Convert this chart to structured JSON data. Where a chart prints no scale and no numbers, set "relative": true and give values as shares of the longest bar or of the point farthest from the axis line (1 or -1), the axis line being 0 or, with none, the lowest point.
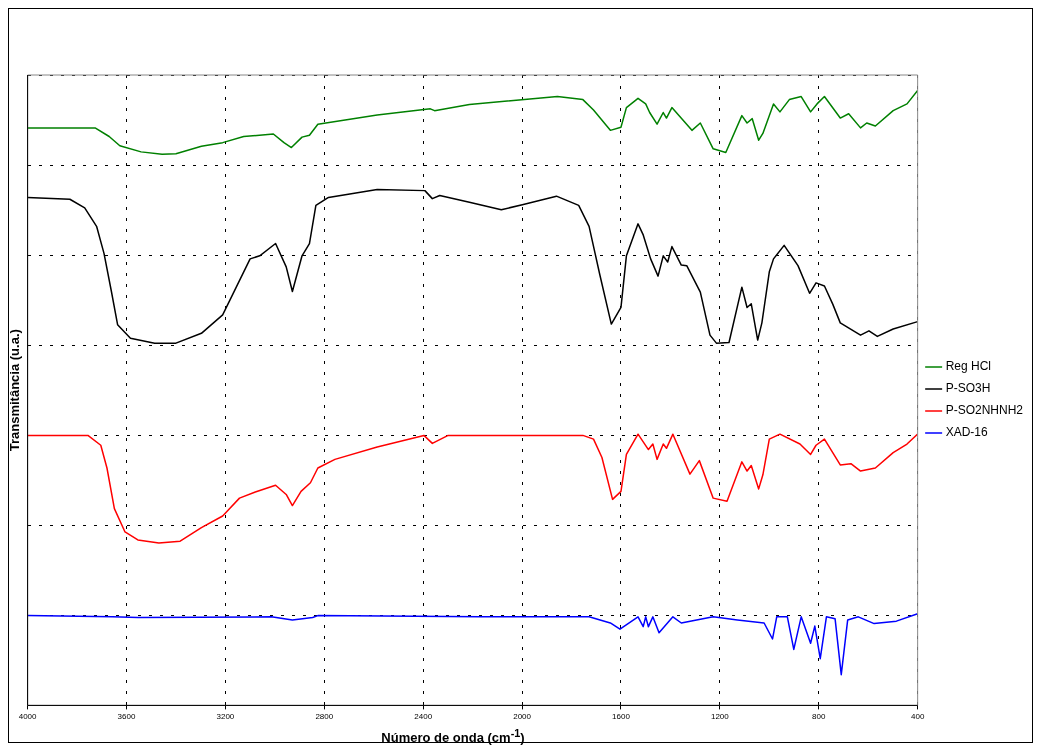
{
  "chart_data": {
    "type": "line",
    "xlabel": "Número de onda (cm$^{-1}$)",
    "ylabel": "Transmitância (u.a.)",
    "relative": true,
    "xlim": [
      4000,
      400
    ],
    "xticks": [
      4000,
      3600,
      3200,
      2800,
      2400,
      2000,
      1600,
      1200,
      800,
      400
    ],
    "grid": true,
    "legend": "right",
    "marker": "none",
    "line_style": "solid",
    "series": [
      {
        "name": "Reg HCl",
        "color": "#008000",
        "x": [
          4000,
          3727,
          3670,
          3627,
          3541,
          3456,
          3400,
          3297,
          3211,
          3126,
          3006,
          2963,
          2933,
          2890,
          2860,
          2826,
          2586,
          2371,
          2354,
          2213,
          1857,
          1754,
          1711,
          1643,
          1600,
          1578,
          1531,
          1500,
          1484,
          1454,
          1429,
          1416,
          1394,
          1313,
          1279,
          1227,
          1176,
          1111,
          1090,
          1069,
          1043,
          1026,
          983,
          957,
          919,
          871,
          833,
          807,
          777,
          713,
          679,
          631,
          606,
          571,
          499,
          443,
          400
        ],
        "values": [
          0.939,
          0.939,
          0.925,
          0.91,
          0.9,
          0.896,
          0.897,
          0.909,
          0.915,
          0.925,
          0.929,
          0.915,
          0.907,
          0.924,
          0.927,
          0.945,
          0.96,
          0.97,
          0.967,
          0.977,
          0.99,
          0.985,
          0.968,
          0.935,
          0.94,
          0.972,
          0.987,
          0.978,
          0.964,
          0.945,
          0.964,
          0.955,
          0.972,
          0.935,
          0.947,
          0.905,
          0.899,
          0.959,
          0.947,
          0.954,
          0.919,
          0.93,
          0.978,
          0.965,
          0.985,
          0.99,
          0.965,
          0.978,
          0.99,
          0.955,
          0.962,
          0.939,
          0.947,
          0.942,
          0.967,
          0.978,
          1.0
        ]
      },
      {
        "name": "P-SO3H",
        "color": "#000000",
        "x": [
          4000,
          3829,
          3769,
          3721,
          3691,
          3661,
          3636,
          3584,
          3486,
          3400,
          3297,
          3211,
          3156,
          3100,
          3061,
          2997,
          2954,
          2929,
          2890,
          2860,
          2834,
          2783,
          2586,
          2393,
          2363,
          2333,
          2213,
          2084,
          1999,
          1861,
          1771,
          1729,
          1686,
          1639,
          1600,
          1578,
          1531,
          1510,
          1480,
          1450,
          1429,
          1411,
          1394,
          1356,
          1334,
          1279,
          1240,
          1214,
          1163,
          1111,
          1090,
          1073,
          1047,
          1030,
          1000,
          983,
          940,
          884,
          837,
          811,
          777,
          743,
          713,
          631,
          597,
          563,
          499,
          400
        ],
        "values": [
          0.826,
          0.823,
          0.809,
          0.779,
          0.735,
          0.673,
          0.619,
          0.597,
          0.589,
          0.589,
          0.605,
          0.635,
          0.68,
          0.726,
          0.731,
          0.751,
          0.713,
          0.673,
          0.731,
          0.751,
          0.813,
          0.826,
          0.839,
          0.837,
          0.824,
          0.829,
          0.818,
          0.806,
          0.814,
          0.828,
          0.813,
          0.779,
          0.701,
          0.62,
          0.647,
          0.731,
          0.783,
          0.765,
          0.726,
          0.698,
          0.731,
          0.721,
          0.746,
          0.716,
          0.715,
          0.672,
          0.602,
          0.589,
          0.59,
          0.68,
          0.647,
          0.653,
          0.594,
          0.622,
          0.705,
          0.726,
          0.748,
          0.715,
          0.67,
          0.687,
          0.682,
          0.652,
          0.622,
          0.602,
          0.609,
          0.6,
          0.612,
          0.624
        ]
      },
      {
        "name": "P-SO2NHNH2",
        "color": "#ff0000",
        "x": [
          4000,
          3756,
          3704,
          3679,
          3649,
          3606,
          3554,
          3469,
          3383,
          3297,
          3211,
          3143,
          3079,
          2997,
          2954,
          2929,
          2894,
          2856,
          2826,
          2757,
          2586,
          2397,
          2363,
          2299,
          1754,
          1711,
          1677,
          1634,
          1600,
          1578,
          1531,
          1489,
          1471,
          1454,
          1429,
          1416,
          1390,
          1321,
          1283,
          1227,
          1171,
          1111,
          1090,
          1073,
          1043,
          1026,
          1000,
          957,
          876,
          833,
          811,
          777,
          713,
          670,
          631,
          571,
          499,
          443,
          400
        ],
        "values": [
          0.439,
          0.439,
          0.423,
          0.386,
          0.32,
          0.282,
          0.269,
          0.264,
          0.267,
          0.289,
          0.308,
          0.337,
          0.347,
          0.358,
          0.343,
          0.325,
          0.348,
          0.362,
          0.386,
          0.4,
          0.42,
          0.439,
          0.426,
          0.439,
          0.439,
          0.433,
          0.403,
          0.335,
          0.348,
          0.408,
          0.441,
          0.416,
          0.425,
          0.4,
          0.425,
          0.418,
          0.441,
          0.376,
          0.398,
          0.337,
          0.332,
          0.396,
          0.381,
          0.39,
          0.352,
          0.375,
          0.433,
          0.441,
          0.425,
          0.408,
          0.423,
          0.433,
          0.391,
          0.393,
          0.381,
          0.386,
          0.411,
          0.425,
          0.441
        ]
      },
      {
        "name": "XAD-16",
        "color": "#0000ff",
        "x": [
          4000,
          3657,
          3554,
          3014,
          2929,
          2847,
          2826,
          2170,
          1729,
          1643,
          1604,
          1531,
          1510,
          1500,
          1489,
          1471,
          1446,
          1390,
          1356,
          1227,
          1129,
          1021,
          987,
          970,
          927,
          901,
          871,
          833,
          816,
          794,
          769,
          734,
          709,
          683,
          640,
          576,
          486,
          400
        ],
        "values": [
          0.146,
          0.144,
          0.143,
          0.144,
          0.139,
          0.143,
          0.146,
          0.144,
          0.144,
          0.134,
          0.124,
          0.144,
          0.128,
          0.144,
          0.128,
          0.144,
          0.118,
          0.144,
          0.134,
          0.144,
          0.139,
          0.134,
          0.108,
          0.144,
          0.144,
          0.091,
          0.144,
          0.101,
          0.129,
          0.076,
          0.144,
          0.141,
          0.05,
          0.139,
          0.144,
          0.133,
          0.137,
          0.149
        ]
      }
    ]
  }
}
